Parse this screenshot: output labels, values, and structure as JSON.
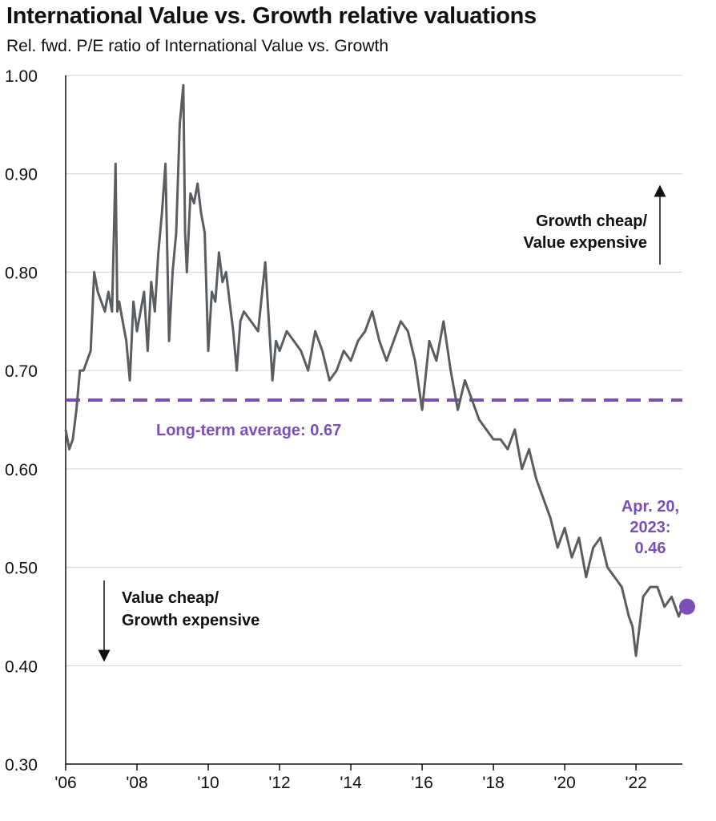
{
  "chart_data": {
    "type": "line",
    "title": "International Value vs. Growth relative valuations",
    "subtitle": "Rel. fwd. P/E ratio of International Value vs. Growth",
    "xlabel": "",
    "ylabel": "",
    "ylim": [
      0.3,
      1.0
    ],
    "xlim": [
      2006.0,
      2023.3
    ],
    "grid": true,
    "y_ticks": [
      "1.00",
      "0.90",
      "0.80",
      "0.70",
      "0.60",
      "0.50",
      "0.40",
      "0.30"
    ],
    "x_ticks": [
      "'06",
      "'08",
      "'10",
      "'12",
      "'14",
      "'16",
      "'18",
      "'20",
      "'22"
    ],
    "series": [
      {
        "name": "Rel. fwd. P/E International Value vs. Growth",
        "color": "#5a5d61",
        "x": [
          2006.0,
          2006.1,
          2006.2,
          2006.3,
          2006.4,
          2006.5,
          2006.6,
          2006.7,
          2006.8,
          2006.9,
          2007.0,
          2007.1,
          2007.2,
          2007.3,
          2007.4,
          2007.45,
          2007.5,
          2007.6,
          2007.7,
          2007.8,
          2007.9,
          2008.0,
          2008.1,
          2008.2,
          2008.3,
          2008.4,
          2008.5,
          2008.6,
          2008.7,
          2008.8,
          2008.9,
          2009.0,
          2009.1,
          2009.2,
          2009.3,
          2009.35,
          2009.4,
          2009.5,
          2009.6,
          2009.7,
          2009.8,
          2009.9,
          2010.0,
          2010.1,
          2010.2,
          2010.3,
          2010.4,
          2010.5,
          2010.6,
          2010.7,
          2010.8,
          2010.9,
          2011.0,
          2011.2,
          2011.4,
          2011.6,
          2011.8,
          2011.9,
          2012.0,
          2012.2,
          2012.4,
          2012.6,
          2012.8,
          2013.0,
          2013.2,
          2013.4,
          2013.6,
          2013.8,
          2014.0,
          2014.2,
          2014.4,
          2014.6,
          2014.8,
          2015.0,
          2015.2,
          2015.4,
          2015.6,
          2015.8,
          2016.0,
          2016.2,
          2016.4,
          2016.6,
          2016.8,
          2017.0,
          2017.2,
          2017.4,
          2017.6,
          2017.8,
          2018.0,
          2018.2,
          2018.4,
          2018.6,
          2018.8,
          2019.0,
          2019.2,
          2019.4,
          2019.6,
          2019.8,
          2020.0,
          2020.2,
          2020.4,
          2020.6,
          2020.8,
          2021.0,
          2021.2,
          2021.4,
          2021.6,
          2021.8,
          2021.9,
          2022.0,
          2022.2,
          2022.4,
          2022.6,
          2022.8,
          2023.0,
          2023.2,
          2023.3
        ],
        "values": [
          0.64,
          0.62,
          0.63,
          0.66,
          0.7,
          0.7,
          0.71,
          0.72,
          0.8,
          0.78,
          0.77,
          0.76,
          0.78,
          0.76,
          0.91,
          0.76,
          0.77,
          0.75,
          0.73,
          0.69,
          0.77,
          0.74,
          0.76,
          0.78,
          0.72,
          0.79,
          0.76,
          0.82,
          0.86,
          0.91,
          0.73,
          0.8,
          0.84,
          0.95,
          0.99,
          0.84,
          0.8,
          0.88,
          0.87,
          0.89,
          0.86,
          0.84,
          0.72,
          0.78,
          0.77,
          0.82,
          0.79,
          0.8,
          0.77,
          0.74,
          0.7,
          0.75,
          0.76,
          0.75,
          0.74,
          0.81,
          0.69,
          0.73,
          0.72,
          0.74,
          0.73,
          0.72,
          0.7,
          0.74,
          0.72,
          0.69,
          0.7,
          0.72,
          0.71,
          0.73,
          0.74,
          0.76,
          0.73,
          0.71,
          0.73,
          0.75,
          0.74,
          0.71,
          0.66,
          0.73,
          0.71,
          0.75,
          0.7,
          0.66,
          0.69,
          0.67,
          0.65,
          0.64,
          0.63,
          0.63,
          0.62,
          0.64,
          0.6,
          0.62,
          0.59,
          0.57,
          0.55,
          0.52,
          0.54,
          0.51,
          0.53,
          0.49,
          0.52,
          0.53,
          0.5,
          0.49,
          0.48,
          0.45,
          0.44,
          0.41,
          0.47,
          0.48,
          0.48,
          0.46,
          0.47,
          0.45,
          0.46
        ]
      }
    ],
    "reference_line": {
      "label": "Long-term average: 0.67",
      "value": 0.67,
      "color": "#7b4fb7"
    },
    "endpoint": {
      "label_lines": [
        "Apr. 20,",
        "2023:",
        "0.46"
      ],
      "x": 2023.3,
      "value": 0.46,
      "color": "#7b4fb7"
    },
    "annotations": {
      "up": [
        "Growth cheap/",
        "Value expensive"
      ],
      "down": [
        "Value cheap/",
        "Growth expensive"
      ]
    }
  }
}
